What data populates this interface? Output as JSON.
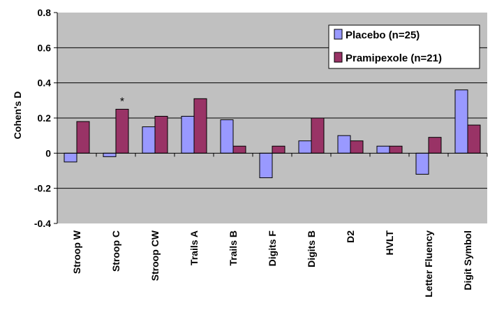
{
  "chart_data": {
    "type": "bar",
    "ylabel": "Cohen's D",
    "xlabel": "",
    "ylim": [
      -0.4,
      0.8
    ],
    "yticks": [
      -0.4,
      -0.2,
      0,
      0.2,
      0.4,
      0.6,
      0.8
    ],
    "ytick_labels": [
      "-0.4",
      "-0.2",
      "0",
      "0.2",
      "0.4",
      "0.6",
      "0.8"
    ],
    "grid": true,
    "legend_position": "top-right",
    "categories": [
      "Stroop W",
      "Stroop C",
      "Stroop CW",
      "Trails A",
      "Trails B",
      "Digits F",
      "Digits B",
      "D2",
      "HVLT",
      "Letter Fluency",
      "Digit Symbol"
    ],
    "series": [
      {
        "name": "Placebo (n=25)",
        "color": "#9999ff",
        "values": [
          -0.05,
          -0.02,
          0.15,
          0.21,
          0.19,
          -0.14,
          0.07,
          0.1,
          0.04,
          -0.12,
          0.36
        ]
      },
      {
        "name": "Pramipexole (n=21)",
        "color": "#993366",
        "values": [
          0.18,
          0.25,
          0.21,
          0.31,
          0.04,
          0.04,
          0.2,
          0.07,
          0.04,
          0.09,
          0.16
        ]
      }
    ],
    "annotations": [
      {
        "text": "*",
        "category": "Stroop C",
        "series": "Pramipexole (n=21)"
      }
    ],
    "plot_background": "#c0c0c0"
  }
}
